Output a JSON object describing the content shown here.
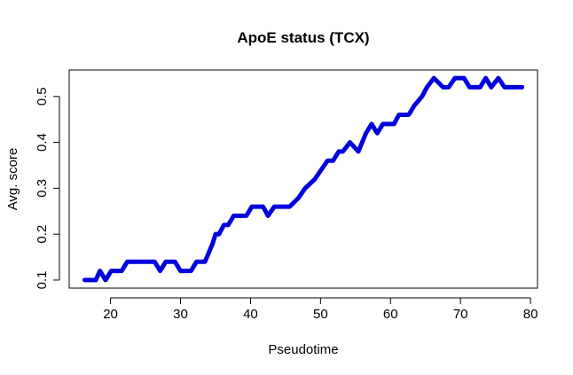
{
  "chart_data": {
    "type": "line",
    "title": "ApoE status (TCX)",
    "xlabel": "Pseudotime",
    "ylabel": "Avg. score",
    "xlim": [
      14.1,
      81.0
    ],
    "ylim": [
      0.0825,
      0.5575
    ],
    "xticks": [
      20,
      30,
      40,
      50,
      60,
      70,
      80
    ],
    "yticks": [
      0.1,
      0.2,
      0.3,
      0.4,
      0.5
    ],
    "xtick_labels": [
      "20",
      "30",
      "40",
      "50",
      "60",
      "70",
      "80"
    ],
    "ytick_labels": [
      "0.1",
      "0.2",
      "0.3",
      "0.4",
      "0.5"
    ],
    "grid": false,
    "series": [
      {
        "color": "#0000dd",
        "x": [
          16.3,
          17.9,
          18.5,
          19.3,
          20.1,
          21.6,
          22.4,
          23.4,
          24.8,
          26.3,
          27.1,
          27.9,
          29.2,
          30.0,
          31.5,
          32.3,
          33.5,
          34.6,
          35.0,
          35.5,
          36.2,
          36.8,
          37.6,
          39.4,
          40.2,
          41.8,
          42.5,
          43.4,
          44.9,
          45.6,
          46.9,
          47.8,
          49.2,
          50.1,
          51.0,
          51.8,
          52.6,
          53.2,
          54.2,
          55.4,
          56.5,
          57.3,
          58.1,
          58.9,
          60.5,
          61.2,
          62.6,
          63.4,
          64.5,
          65.2,
          66.2,
          67.5,
          68.3,
          69.2,
          70.5,
          71.3,
          72.8,
          73.6,
          74.4,
          75.4,
          76.3,
          77.6,
          78.8
        ],
        "y": [
          0.1,
          0.1,
          0.12,
          0.1,
          0.12,
          0.12,
          0.14,
          0.14,
          0.14,
          0.14,
          0.12,
          0.14,
          0.14,
          0.12,
          0.12,
          0.14,
          0.14,
          0.18,
          0.2,
          0.2,
          0.22,
          0.22,
          0.24,
          0.24,
          0.26,
          0.26,
          0.24,
          0.26,
          0.26,
          0.26,
          0.28,
          0.3,
          0.32,
          0.34,
          0.36,
          0.36,
          0.38,
          0.38,
          0.4,
          0.38,
          0.42,
          0.44,
          0.42,
          0.44,
          0.44,
          0.46,
          0.46,
          0.48,
          0.5,
          0.52,
          0.54,
          0.52,
          0.52,
          0.54,
          0.54,
          0.52,
          0.52,
          0.54,
          0.52,
          0.54,
          0.52,
          0.52,
          0.52
        ]
      }
    ]
  }
}
